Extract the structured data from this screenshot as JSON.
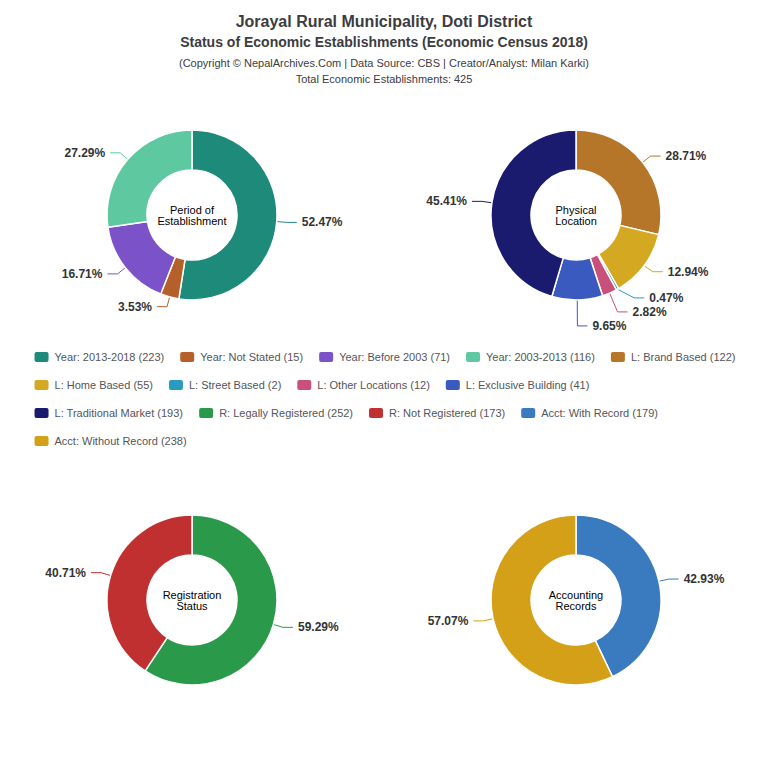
{
  "title": "Jorayal Rural Municipality, Doti District",
  "subtitle": "Status of Economic Establishments (Economic Census 2018)",
  "annotations": [
    "(Copyright © NepalArchives.Com | Data Source: CBS | Creator/Analyst: Milan Karki)",
    "Total Economic Establishments: 425"
  ],
  "legend": "center",
  "chart_data": [
    {
      "type": "pie",
      "title": "Period of\nEstablishment",
      "categories": [
        "Year: 2013-2018 (223)",
        "Year: Not Stated (15)",
        "Year: Before 2003 (71)",
        "Year: 2003-2013 (116)"
      ],
      "values": [
        52.47,
        3.53,
        16.71,
        27.29
      ],
      "colors": [
        "#1d8a7a",
        "#b5602a",
        "#7b52c8",
        "#5ec8a0"
      ],
      "data_labels": true,
      "value_labels": [
        "52.47%",
        "3.53%",
        "16.71%",
        "27.29%"
      ]
    },
    {
      "type": "pie",
      "title": "Physical\nLocation",
      "categories": [
        "L: Brand Based (122)",
        "L: Home Based (55)",
        "L: Street Based (2)",
        "L: Other Locations (12)",
        "L: Exclusive Building (41)",
        "L: Traditional Market (193)"
      ],
      "values": [
        28.71,
        12.94,
        0.47,
        2.82,
        9.65,
        45.41
      ],
      "colors": [
        "#b5762a",
        "#d4a820",
        "#2a9abf",
        "#c8507a",
        "#3a5abf",
        "#1a1a6e"
      ],
      "data_labels": true,
      "value_labels": [
        "28.71%",
        "12.94%",
        "0.47%",
        "2.82%",
        "9.65%",
        "45.41%"
      ]
    },
    {
      "type": "pie",
      "title": "Registration\nStatus",
      "categories": [
        "R: Legally Registered (252)",
        "R: Not Registered (173)"
      ],
      "values": [
        59.29,
        40.71
      ],
      "colors": [
        "#2a9a4a",
        "#c03030"
      ],
      "data_labels": true,
      "value_labels": [
        "59.29%",
        "40.71%"
      ]
    },
    {
      "type": "pie",
      "title": "Accounting\nRecords",
      "categories": [
        "Acct: With Record (179)",
        "Acct: Without Record (238)"
      ],
      "values": [
        42.93,
        57.07
      ],
      "colors": [
        "#3a7abf",
        "#d4a017"
      ],
      "data_labels": true,
      "value_labels": [
        "42.93%",
        "57.07%"
      ]
    }
  ]
}
